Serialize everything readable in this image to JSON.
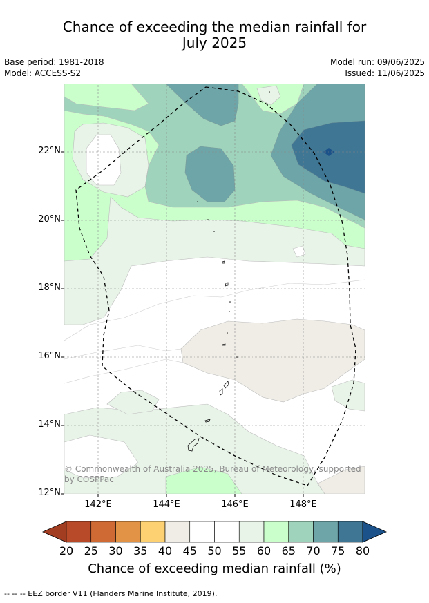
{
  "title_line1": "Chance of exceeding the median rainfall for",
  "title_line2": "July 2025",
  "meta": {
    "base_period": "Base period: 1981-2018",
    "model": "Model: ACCESS-S2",
    "model_run": "Model run: 09/06/2025",
    "issued": "Issued: 11/06/2025"
  },
  "axes": {
    "lat_labels": [
      "22°N",
      "20°N",
      "18°N",
      "16°N",
      "14°N",
      "12°N"
    ],
    "lon_labels": [
      "142°E",
      "144°E",
      "146°E",
      "148°E"
    ]
  },
  "copyright": "© Commonwealth of Australia 2025, Bureau of Meteorology, supported by COSPPac",
  "colorbar": {
    "ticks": [
      "20",
      "25",
      "30",
      "35",
      "40",
      "45",
      "50",
      "55",
      "60",
      "65",
      "70",
      "75",
      "80"
    ],
    "colors": [
      "#a33d22",
      "#b84a2a",
      "#cf6a34",
      "#e39346",
      "#fdd071",
      "#efede6",
      "#ffffff",
      "#ffffff",
      "#e9f4e9",
      "#caffcc",
      "#9fd3bc",
      "#6ea5a8",
      "#3f7694",
      "#1b5289"
    ],
    "label": "Chance of exceeding median rainfall (%)"
  },
  "footer": "--  --  -- EEZ border V11 (Flanders Marine Institute, 2019)."
}
